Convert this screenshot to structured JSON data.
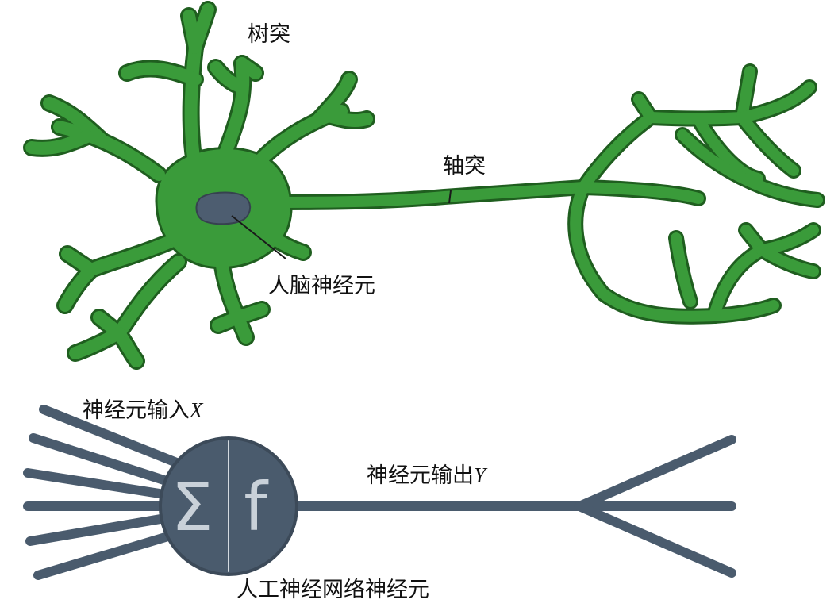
{
  "colors": {
    "neuron_green": "#3a9b3a",
    "neuron_outline": "#1f5e1f",
    "nucleus": "#4d5d70",
    "artificial": "#4a5b6d",
    "symbol": "#c9d1d9"
  },
  "bio": {
    "dendrite_label": "树突",
    "axon_label": "轴突",
    "neuron_label": "人脑神经元"
  },
  "artificial": {
    "input_label_text": "神经元输入",
    "input_label_var": "X",
    "output_label_text": "神经元输出",
    "output_label_var": "Y",
    "sum_symbol": "Σ",
    "func_symbol": "f",
    "neuron_label": "人工神经网络神经元"
  }
}
